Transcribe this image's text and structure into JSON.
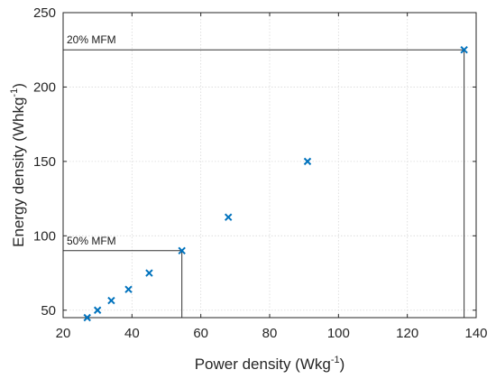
{
  "chart_data": {
    "type": "scatter",
    "title": "",
    "xlabel": {
      "base": "Power density (Wkg",
      "sup": "-1",
      "end": ")"
    },
    "ylabel": {
      "base": "Energy density (Whkg",
      "sup": "-1",
      "end": ")"
    },
    "xlim": [
      20,
      140
    ],
    "ylim": [
      45,
      250
    ],
    "xticks": [
      20,
      40,
      60,
      80,
      100,
      120,
      140
    ],
    "yticks": [
      50,
      100,
      150,
      200,
      250
    ],
    "grid": true,
    "series": [
      {
        "marker": "x",
        "color": "#0072BD",
        "x": [
          27,
          30,
          34,
          39,
          45,
          54.5,
          68,
          91,
          136.5
        ],
        "y": [
          45,
          50,
          56.5,
          64,
          75,
          90,
          112.5,
          150,
          225
        ]
      }
    ],
    "annotations": [
      {
        "text": "20% MFM",
        "x": 136.5,
        "y": 225
      },
      {
        "text": "50% MFM",
        "x": 54.5,
        "y": 90
      }
    ]
  }
}
